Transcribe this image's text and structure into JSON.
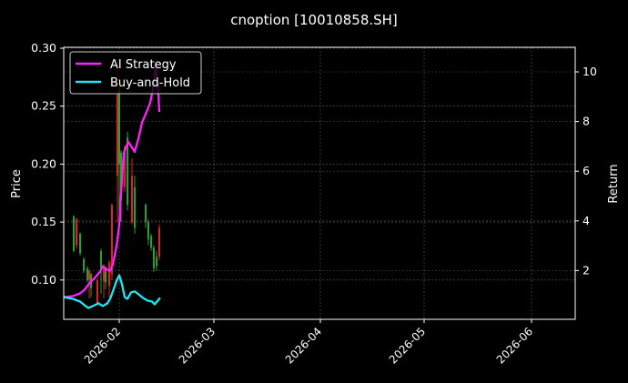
{
  "chart_data": {
    "type": "line",
    "title": "cnoption [10010858.SH]",
    "xlabel": "",
    "ylabel": "Price",
    "y2label": "Return",
    "xlim": [
      "2026-01-15",
      "2026-06-16"
    ],
    "ylim": [
      0.065,
      0.3
    ],
    "y2lim": [
      0.2,
      11.1
    ],
    "grid": true,
    "legend_position": "upper left",
    "x_ticks": [
      "2026-02",
      "2026-03",
      "2026-04",
      "2026-05",
      "2026-06"
    ],
    "y_ticks": [
      "0.10",
      "0.15",
      "0.20",
      "0.25",
      "0.30"
    ],
    "y2_ticks": [
      "2",
      "4",
      "6",
      "8",
      "10"
    ],
    "candles": {
      "description": "Daily OHLC price candles (green = up, red = down); values estimated",
      "items": [
        {
          "x": 81,
          "open": 0.125,
          "close": 0.155,
          "high": 0.156,
          "low": 0.124,
          "color": "#2ca02c"
        },
        {
          "x": 84,
          "open": 0.153,
          "close": 0.13,
          "high": 0.153,
          "low": 0.127,
          "color": "#d62728"
        },
        {
          "x": 88,
          "open": 0.123,
          "close": 0.14,
          "high": 0.141,
          "low": 0.121,
          "color": "#2ca02c"
        },
        {
          "x": 92,
          "open": 0.108,
          "close": 0.118,
          "high": 0.12,
          "low": 0.106,
          "color": "#2ca02c"
        },
        {
          "x": 96,
          "open": 0.1,
          "close": 0.11,
          "high": 0.112,
          "low": 0.098,
          "color": "#2ca02c"
        },
        {
          "x": 98,
          "open": 0.108,
          "close": 0.1,
          "high": 0.109,
          "low": 0.084,
          "color": "#d62728"
        },
        {
          "x": 100,
          "open": 0.093,
          "close": 0.105,
          "high": 0.106,
          "low": 0.085,
          "color": "#2ca02c"
        },
        {
          "x": 107,
          "open": 0.1,
          "close": 0.08,
          "high": 0.101,
          "low": 0.078,
          "color": "#d62728"
        },
        {
          "x": 111,
          "open": 0.11,
          "close": 0.125,
          "high": 0.127,
          "low": 0.088,
          "color": "#2ca02c"
        },
        {
          "x": 114,
          "open": 0.11,
          "close": 0.099,
          "high": 0.114,
          "low": 0.084,
          "color": "#d62728"
        },
        {
          "x": 116,
          "open": 0.098,
          "close": 0.11,
          "high": 0.112,
          "low": 0.092,
          "color": "#2ca02c"
        },
        {
          "x": 120,
          "open": 0.115,
          "close": 0.095,
          "high": 0.117,
          "low": 0.085,
          "color": "#d62728"
        },
        {
          "x": 123,
          "open": 0.165,
          "close": 0.105,
          "high": 0.166,
          "low": 0.1,
          "color": "#d62728"
        },
        {
          "x": 129,
          "open": 0.26,
          "close": 0.19,
          "high": 0.29,
          "low": 0.15,
          "color": "#d62728"
        },
        {
          "x": 131,
          "open": 0.2,
          "close": 0.265,
          "high": 0.268,
          "low": 0.16,
          "color": "#2ca02c"
        },
        {
          "x": 133,
          "open": 0.175,
          "close": 0.21,
          "high": 0.212,
          "low": 0.15,
          "color": "#2ca02c"
        },
        {
          "x": 137,
          "open": 0.215,
          "close": 0.18,
          "high": 0.216,
          "low": 0.176,
          "color": "#d62728"
        },
        {
          "x": 140,
          "open": 0.165,
          "close": 0.223,
          "high": 0.228,
          "low": 0.16,
          "color": "#2ca02c"
        },
        {
          "x": 145,
          "open": 0.19,
          "close": 0.15,
          "high": 0.205,
          "low": 0.148,
          "color": "#d62728"
        },
        {
          "x": 148,
          "open": 0.145,
          "close": 0.18,
          "high": 0.19,
          "low": 0.14,
          "color": "#2ca02c"
        },
        {
          "x": 160,
          "open": 0.15,
          "close": 0.165,
          "high": 0.166,
          "low": 0.145,
          "color": "#2ca02c"
        },
        {
          "x": 163,
          "open": 0.135,
          "close": 0.15,
          "high": 0.152,
          "low": 0.13,
          "color": "#2ca02c"
        },
        {
          "x": 166,
          "open": 0.128,
          "close": 0.138,
          "high": 0.14,
          "low": 0.125,
          "color": "#2ca02c"
        },
        {
          "x": 169,
          "open": 0.11,
          "close": 0.128,
          "high": 0.13,
          "low": 0.107,
          "color": "#2ca02c"
        },
        {
          "x": 172,
          "open": 0.12,
          "close": 0.112,
          "high": 0.125,
          "low": 0.108,
          "color": "#2ca02c"
        },
        {
          "x": 175,
          "open": 0.145,
          "close": 0.12,
          "high": 0.148,
          "low": 0.117,
          "color": "#d62728"
        }
      ]
    },
    "series": [
      {
        "name": "AI Strategy",
        "axis": "right",
        "color": "#ff22ff",
        "points": [
          [
            70,
            0.93
          ],
          [
            80,
            0.97
          ],
          [
            88,
            1.08
          ],
          [
            93,
            1.23
          ],
          [
            98,
            1.48
          ],
          [
            104,
            1.7
          ],
          [
            110,
            1.96
          ],
          [
            113,
            2.17
          ],
          [
            118,
            2.03
          ],
          [
            121,
            1.99
          ],
          [
            124,
            2.25
          ],
          [
            128,
            2.98
          ],
          [
            131,
            3.82
          ],
          [
            133,
            5.1
          ],
          [
            136,
            6.75
          ],
          [
            141,
            7.18
          ],
          [
            148,
            6.78
          ],
          [
            152,
            7.3
          ],
          [
            156,
            7.96
          ],
          [
            161,
            8.39
          ],
          [
            165,
            8.76
          ],
          [
            168,
            9.31
          ],
          [
            171,
            10.3
          ],
          [
            174,
            9.12
          ],
          [
            175,
            8.39
          ]
        ]
      },
      {
        "name": "Buy-and-Hold",
        "axis": "right",
        "color": "#22e5f0",
        "points": [
          [
            70,
            0.93
          ],
          [
            80,
            0.86
          ],
          [
            88,
            0.75
          ],
          [
            93,
            0.6
          ],
          [
            97,
            0.49
          ],
          [
            102,
            0.57
          ],
          [
            108,
            0.68
          ],
          [
            113,
            0.57
          ],
          [
            118,
            0.68
          ],
          [
            121,
            0.86
          ],
          [
            125,
            1.26
          ],
          [
            128,
            1.59
          ],
          [
            131,
            1.81
          ],
          [
            134,
            1.45
          ],
          [
            137,
            0.93
          ],
          [
            140,
            0.86
          ],
          [
            144,
            1.12
          ],
          [
            148,
            1.16
          ],
          [
            152,
            1.05
          ],
          [
            157,
            0.9
          ],
          [
            162,
            0.79
          ],
          [
            167,
            0.75
          ],
          [
            170,
            0.64
          ],
          [
            174,
            0.82
          ],
          [
            176,
            0.9
          ]
        ]
      }
    ]
  },
  "legend": {
    "items": [
      {
        "label": "AI Strategy",
        "color": "#ff22ff"
      },
      {
        "label": "Buy-and-Hold",
        "color": "#22e5f0"
      }
    ]
  },
  "axes": {
    "left_label": "Price",
    "right_label": "Return",
    "x_tick_labels": [
      "2026-02",
      "2026-03",
      "2026-04",
      "2026-05",
      "2026-06"
    ],
    "left_tick_labels": [
      "0.30",
      "0.25",
      "0.20",
      "0.15",
      "0.10"
    ],
    "right_tick_labels": [
      "10",
      "8",
      "6",
      "4",
      "2"
    ]
  }
}
